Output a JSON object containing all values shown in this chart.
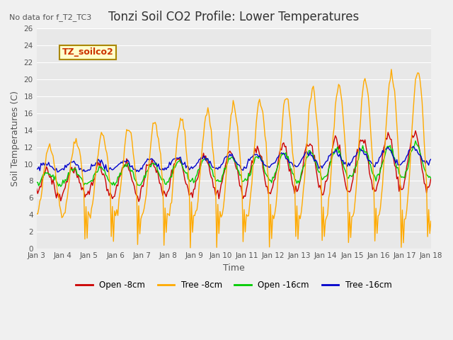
{
  "title": "Tonzi Soil CO2 Profile: Lower Temperatures",
  "subtitle": "No data for f_T2_TC3",
  "ylabel": "Soil Temperatures (C)",
  "xlabel": "Time",
  "legend_box_label": "TZ_soilco2",
  "ylim": [
    0,
    26
  ],
  "xlim": [
    0,
    360
  ],
  "colors": {
    "open_8cm": "#cc0000",
    "tree_8cm": "#ffaa00",
    "open_16cm": "#00cc00",
    "tree_16cm": "#0000cc"
  },
  "legend_labels": [
    "Open -8cm",
    "Tree -8cm",
    "Open -16cm",
    "Tree -16cm"
  ],
  "xtick_labels": [
    "Jan 3",
    "Jan 4",
    "Jan 5",
    "Jan 6",
    "Jan 7",
    "Jan 8",
    "Jan 9",
    "Jan 10",
    "Jan 11",
    "Jan 12",
    "Jan 13",
    "Jan 14",
    "Jan 15",
    "Jan 16",
    "Jan 17",
    "Jan 18"
  ],
  "bg_color": "#e8e8e8",
  "plot_bg": "#d8d8d8",
  "grid_color": "#ffffff"
}
